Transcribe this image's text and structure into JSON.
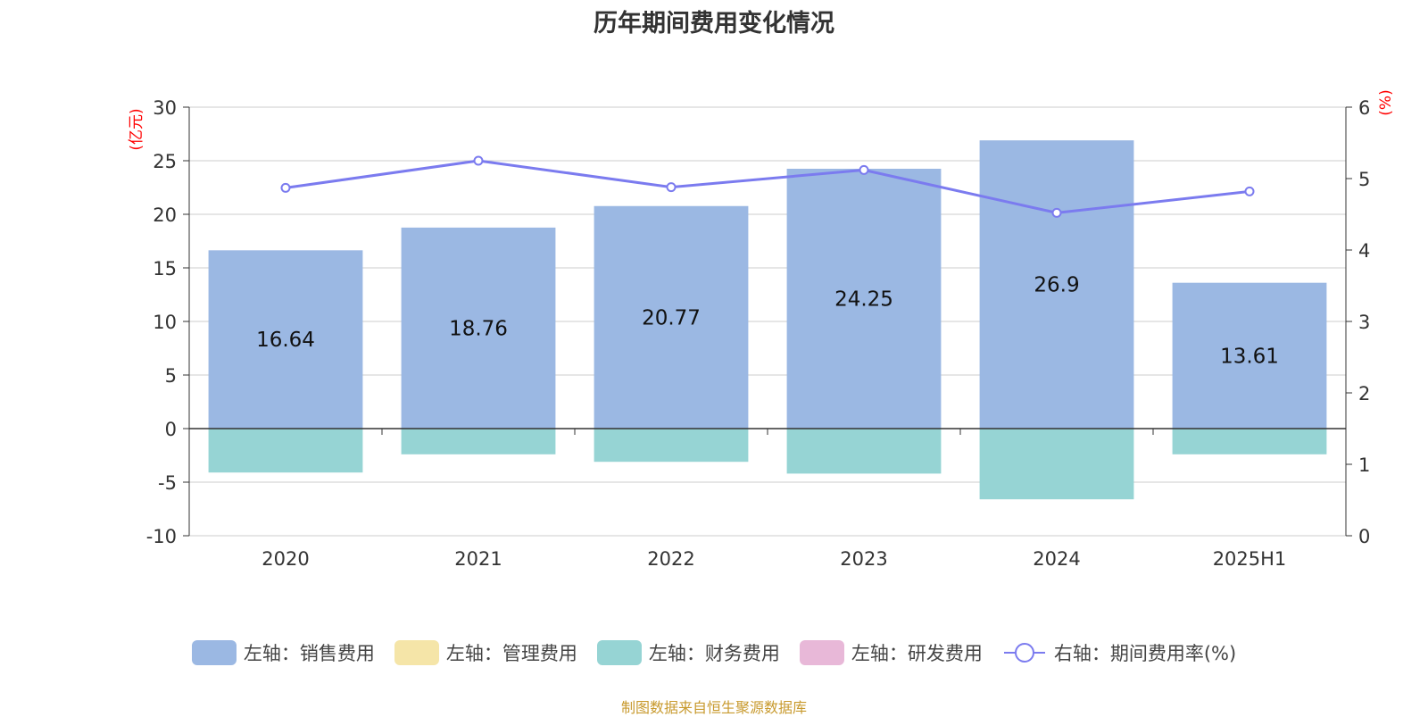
{
  "chart_data": {
    "type": "bar",
    "title": "历年期间费用变化情况",
    "categories": [
      "2020",
      "2021",
      "2022",
      "2023",
      "2024",
      "2025H1"
    ],
    "series": [
      {
        "name": "左轴：销售费用",
        "axis": "left",
        "type": "bar",
        "color": "#9bb8e3",
        "values": [
          16.64,
          18.76,
          20.77,
          24.25,
          26.9,
          13.61
        ],
        "labels": [
          "16.64",
          "18.76",
          "20.77",
          "24.25",
          "26.9",
          "13.61"
        ]
      },
      {
        "name": "左轴：管理费用",
        "axis": "left",
        "type": "bar",
        "color": "#f5e5a8",
        "values": [
          null,
          null,
          null,
          null,
          null,
          null
        ]
      },
      {
        "name": "左轴：财务费用",
        "axis": "left",
        "type": "bar",
        "color": "#96d4d4",
        "values": [
          -4.1,
          -2.4,
          -3.1,
          -4.2,
          -6.6,
          -2.4
        ]
      },
      {
        "name": "左轴：研发费用",
        "axis": "left",
        "type": "bar",
        "color": "#e8b8d8",
        "values": [
          null,
          null,
          null,
          null,
          null,
          null
        ]
      },
      {
        "name": "右轴：期间费用率(%)",
        "axis": "right",
        "type": "line",
        "color": "#7b7bef",
        "values": [
          4.87,
          5.25,
          4.88,
          5.12,
          4.52,
          4.82
        ]
      }
    ],
    "y_left": {
      "unit": "(亿元)",
      "min": -10,
      "max": 30,
      "ticks": [
        30,
        25,
        20,
        15,
        10,
        5,
        0,
        -5,
        -10
      ],
      "tick_labels": [
        "30",
        "25",
        "20",
        "15",
        "10",
        "5",
        "0",
        "-5",
        "-10"
      ]
    },
    "y_right": {
      "unit": "(%)",
      "min": 0,
      "max": 6,
      "ticks": [
        6,
        5,
        4,
        3,
        2,
        1,
        0
      ],
      "tick_labels": [
        "6",
        "5",
        "4",
        "3",
        "2",
        "1",
        "0"
      ]
    },
    "grid": true,
    "legend_position": "bottom"
  },
  "source_note": "制图数据来自恒生聚源数据库",
  "colors": {
    "unit_text": "#ff0000",
    "source_note": "#c89a2e",
    "grid": "#cccccc",
    "axis": "#333333"
  }
}
